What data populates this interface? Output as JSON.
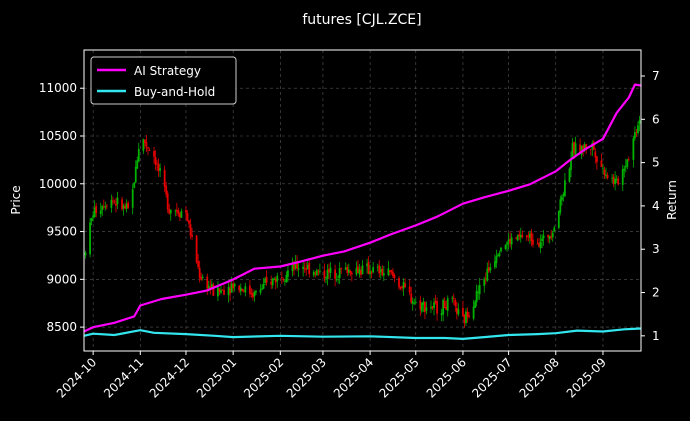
{
  "chart_data": {
    "type": "candlestick+line",
    "title": "futures [CJL.ZCE]",
    "ylabel_left": "Price",
    "ylabel_right": "Return",
    "ylim_left": [
      8250,
      11400
    ],
    "ylim_right": [
      0.65,
      7.6
    ],
    "yticks_left": [
      8500,
      9000,
      9500,
      10000,
      10500,
      11000
    ],
    "yticks_right": [
      1,
      2,
      3,
      4,
      5,
      6,
      7
    ],
    "xlim": [
      "2024-09-25",
      "2025-09-26"
    ],
    "xticks": [
      "2024-10-01",
      "2024-11-01",
      "2024-12-01",
      "2025-01-01",
      "2025-02-01",
      "2025-03-01",
      "2025-04-01",
      "2025-05-01",
      "2025-06-01",
      "2025-07-01",
      "2025-08-01",
      "2025-09-01"
    ],
    "xtick_labels": [
      "2024-10",
      "2024-11",
      "2024-12",
      "2025-01",
      "2025-02",
      "2025-03",
      "2025-04",
      "2025-05",
      "2025-06",
      "2025-07",
      "2025-08",
      "2025-09"
    ],
    "grid": true,
    "legend_position": "top-left",
    "candle_up_color": "#00b300",
    "candle_down_color": "#e60000",
    "price_anchors": [
      [
        "2024-09-25",
        9250
      ],
      [
        "2024-10-01",
        9700
      ],
      [
        "2024-10-12",
        9850
      ],
      [
        "2024-10-25",
        9700
      ],
      [
        "2024-11-01",
        10500
      ],
      [
        "2024-11-10",
        10300
      ],
      [
        "2024-11-20",
        9750
      ],
      [
        "2024-12-01",
        9700
      ],
      [
        "2024-12-10",
        9050
      ],
      [
        "2024-12-20",
        8850
      ],
      [
        "2025-01-01",
        8950
      ],
      [
        "2025-01-15",
        8850
      ],
      [
        "2025-02-01",
        9050
      ],
      [
        "2025-02-15",
        9150
      ],
      [
        "2025-03-01",
        9050
      ],
      [
        "2025-03-15",
        9100
      ],
      [
        "2025-04-01",
        9100
      ],
      [
        "2025-04-15",
        9050
      ],
      [
        "2025-05-01",
        8750
      ],
      [
        "2025-05-15",
        8700
      ],
      [
        "2025-05-25",
        8750
      ],
      [
        "2025-06-01",
        8550
      ],
      [
        "2025-06-12",
        8900
      ],
      [
        "2025-06-25",
        9350
      ],
      [
        "2025-07-10",
        9450
      ],
      [
        "2025-07-25",
        9400
      ],
      [
        "2025-08-01",
        9600
      ],
      [
        "2025-08-12",
        10350
      ],
      [
        "2025-08-25",
        10400
      ],
      [
        "2025-09-01",
        10150
      ],
      [
        "2025-09-10",
        10000
      ],
      [
        "2025-09-18",
        10300
      ],
      [
        "2025-09-26",
        10750
      ]
    ],
    "series": [
      {
        "name": "AI Strategy",
        "color": "#ff00ff",
        "points": [
          [
            "2024-09-25",
            1.1
          ],
          [
            "2024-10-01",
            1.2
          ],
          [
            "2024-10-15",
            1.3
          ],
          [
            "2024-10-28",
            1.45
          ],
          [
            "2024-11-01",
            1.7
          ],
          [
            "2024-11-15",
            1.85
          ],
          [
            "2024-12-01",
            1.95
          ],
          [
            "2024-12-15",
            2.05
          ],
          [
            "2025-01-01",
            2.3
          ],
          [
            "2025-01-15",
            2.55
          ],
          [
            "2025-02-01",
            2.6
          ],
          [
            "2025-02-15",
            2.72
          ],
          [
            "2025-03-01",
            2.85
          ],
          [
            "2025-03-15",
            2.95
          ],
          [
            "2025-04-01",
            3.15
          ],
          [
            "2025-04-15",
            3.35
          ],
          [
            "2025-05-01",
            3.55
          ],
          [
            "2025-05-15",
            3.75
          ],
          [
            "2025-06-01",
            4.05
          ],
          [
            "2025-06-15",
            4.2
          ],
          [
            "2025-07-01",
            4.35
          ],
          [
            "2025-07-15",
            4.5
          ],
          [
            "2025-08-01",
            4.8
          ],
          [
            "2025-08-10",
            5.05
          ],
          [
            "2025-08-20",
            5.3
          ],
          [
            "2025-09-01",
            5.55
          ],
          [
            "2025-09-10",
            6.15
          ],
          [
            "2025-09-18",
            6.5
          ],
          [
            "2025-09-22",
            6.8
          ],
          [
            "2025-09-26",
            6.78
          ]
        ]
      },
      {
        "name": "Buy-and-Hold",
        "color": "#33e6ee",
        "points": [
          [
            "2024-09-25",
            1.0
          ],
          [
            "2024-10-01",
            1.05
          ],
          [
            "2024-10-15",
            1.02
          ],
          [
            "2024-11-01",
            1.13
          ],
          [
            "2024-11-10",
            1.07
          ],
          [
            "2024-12-01",
            1.04
          ],
          [
            "2024-12-20",
            1.0
          ],
          [
            "2025-01-01",
            0.97
          ],
          [
            "2025-02-01",
            1.0
          ],
          [
            "2025-03-01",
            0.98
          ],
          [
            "2025-04-01",
            0.99
          ],
          [
            "2025-05-01",
            0.95
          ],
          [
            "2025-05-20",
            0.95
          ],
          [
            "2025-06-01",
            0.93
          ],
          [
            "2025-06-15",
            0.97
          ],
          [
            "2025-07-01",
            1.02
          ],
          [
            "2025-07-20",
            1.04
          ],
          [
            "2025-08-01",
            1.06
          ],
          [
            "2025-08-15",
            1.12
          ],
          [
            "2025-09-01",
            1.1
          ],
          [
            "2025-09-15",
            1.15
          ],
          [
            "2025-09-26",
            1.17
          ]
        ]
      }
    ]
  }
}
